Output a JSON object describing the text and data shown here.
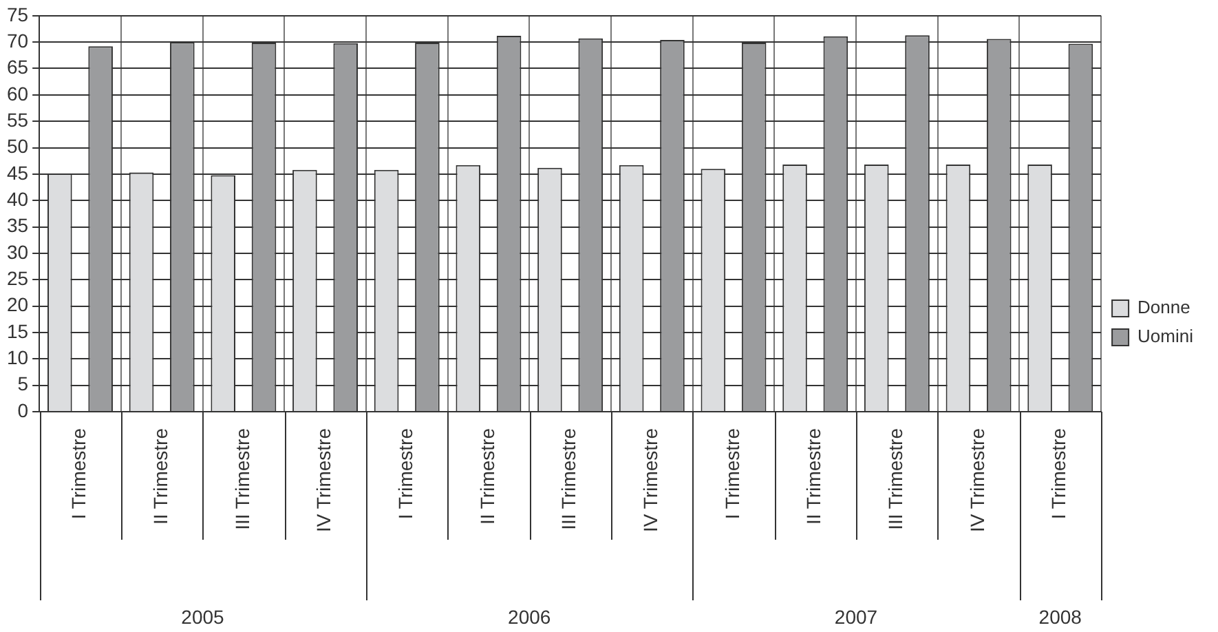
{
  "chart_data": {
    "type": "bar",
    "categories": [
      "I Trimestre",
      "II Trimestre",
      "III Trimestre",
      "IV Trimestre",
      "I Trimestre",
      "II Trimestre",
      "III Trimestre",
      "IV Trimestre",
      "I Trimestre",
      "II Trimestre",
      "III Trimestre",
      "IV Trimestre",
      "I Trimestre"
    ],
    "series": [
      {
        "name": "Donne",
        "color": "#dcdddf",
        "values": [
          45.1,
          45.3,
          44.8,
          45.8,
          45.8,
          46.7,
          46.2,
          46.7,
          46.0,
          46.8,
          46.8,
          46.8,
          46.8
        ]
      },
      {
        "name": "Uomini",
        "color": "#9b9c9e",
        "values": [
          69.2,
          70.0,
          69.9,
          69.8,
          69.9,
          71.2,
          70.7,
          70.4,
          69.9,
          71.1,
          71.3,
          70.6,
          69.7
        ]
      }
    ],
    "ylim": [
      0,
      75
    ],
    "yticks": [
      0,
      5,
      10,
      15,
      20,
      25,
      30,
      35,
      40,
      45,
      50,
      55,
      60,
      65,
      70,
      75
    ],
    "grid": true,
    "legend": "right",
    "annotations": [
      "2005",
      "2006",
      "2007",
      "2008"
    ]
  }
}
